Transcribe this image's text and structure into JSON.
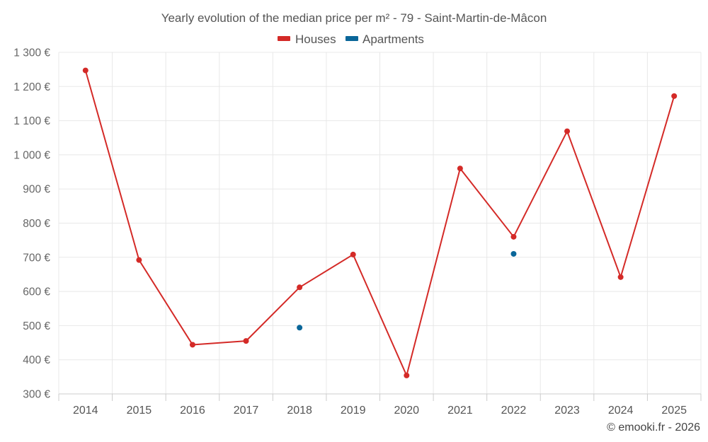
{
  "chart_data": {
    "type": "line",
    "title": "Yearly evolution of the median price per m² - 79 - Saint-Martin-de-Mâcon",
    "categories": [
      "2014",
      "2015",
      "2016",
      "2017",
      "2018",
      "2019",
      "2020",
      "2021",
      "2022",
      "2023",
      "2024",
      "2025"
    ],
    "series": [
      {
        "name": "Houses",
        "color": "#d42a27",
        "values": [
          1247,
          692,
          444,
          455,
          612,
          708,
          354,
          960,
          760,
          1069,
          642,
          1172
        ]
      },
      {
        "name": "Apartments",
        "color": "#0a6699",
        "values": [
          null,
          null,
          null,
          null,
          494,
          null,
          null,
          null,
          710,
          null,
          null,
          null
        ]
      }
    ],
    "ylim": [
      300,
      1300
    ],
    "yticks": [
      300,
      400,
      500,
      600,
      700,
      800,
      900,
      1000,
      1100,
      1200,
      1300
    ],
    "ytick_labels": [
      "300 €",
      "400 €",
      "500 €",
      "600 €",
      "700 €",
      "800 €",
      "900 €",
      "1 000 €",
      "1 100 €",
      "1 200 €",
      "1 300 €"
    ],
    "legend_position": "top-center",
    "grid": true
  },
  "credit": "© emooki.fr - 2026"
}
